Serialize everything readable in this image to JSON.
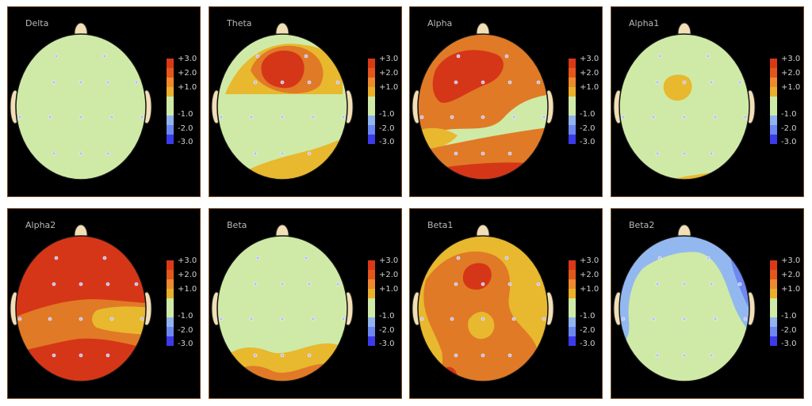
{
  "scale": {
    "labels": [
      "+3.0",
      "+2.0",
      "+1.0",
      "-1.0",
      "-2.0",
      "-3.0"
    ],
    "colors": [
      "#d93a16",
      "#e3561c",
      "#ec8a2c",
      "#eab02a",
      "#cfeaa6",
      "#cfeaa6",
      "#8fb4f0",
      "#6d88f2",
      "#3b3bea"
    ]
  },
  "colors": {
    "green": "#cfeaa6",
    "yellow": "#e8b82e",
    "orange": "#e07a26",
    "red": "#d63618",
    "lightblue": "#93b8f0",
    "blue": "#6d88ee",
    "ear": "#f2dfb6",
    "electrode": "#b9b9ff",
    "background": "#000000"
  },
  "panels": [
    {
      "title": "Delta"
    },
    {
      "title": "Theta"
    },
    {
      "title": "Alpha"
    },
    {
      "title": "Alpha1"
    },
    {
      "title": "Alpha2"
    },
    {
      "title": "Beta"
    },
    {
      "title": "Beta1"
    },
    {
      "title": "Beta2"
    }
  ]
}
